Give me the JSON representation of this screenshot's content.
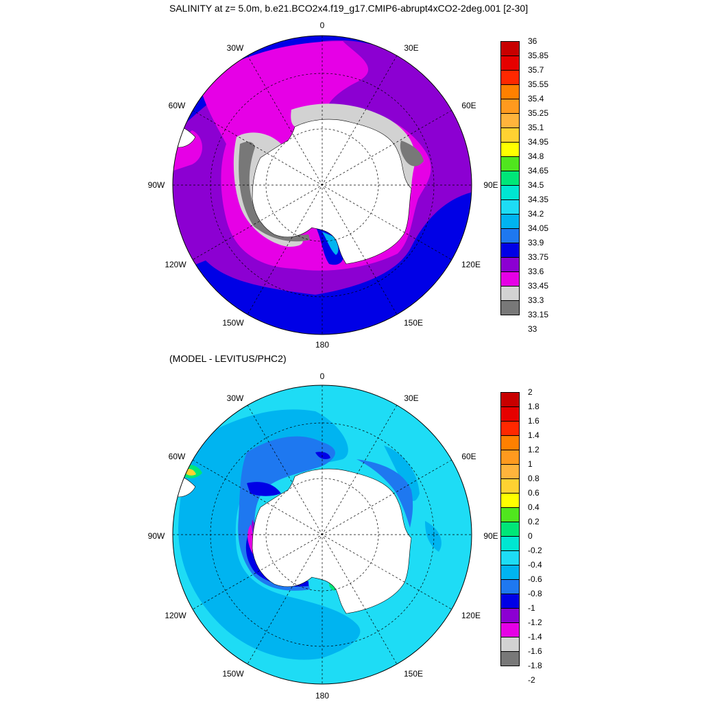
{
  "titles": {
    "main": "SALINITY at z=   5.0m, b.e21.BCO2x4.f19_g17.CMIP6-abrupt4xCO2-2deg.001 [2-30]",
    "difference": "(MODEL - LEVITUS/PHC2)"
  },
  "map_labels": {
    "top": "0",
    "lon_30w": "30W",
    "lon_30e": "30E",
    "lon_60w": "60W",
    "lon_60e": "60E",
    "lon_90w": "90W",
    "lon_90e": "90E",
    "lon_120w": "120W",
    "lon_120e": "120E",
    "lon_150w": "150W",
    "lon_150e": "150E",
    "bottom": "180"
  },
  "salinity_colorbar": {
    "labels": [
      "36",
      "35.85",
      "35.7",
      "35.55",
      "35.4",
      "35.25",
      "35.1",
      "34.95",
      "34.8",
      "34.65",
      "34.5",
      "34.35",
      "34.2",
      "34.05",
      "33.9",
      "33.75",
      "33.6",
      "33.45",
      "33.3",
      "33.15",
      "33"
    ],
    "colors": [
      "#c80000",
      "#e60000",
      "#ff2800",
      "#ff8000",
      "#ff9a1e",
      "#ffb43c",
      "#ffd232",
      "#ffff00",
      "#50e61e",
      "#00e678",
      "#00e6d2",
      "#1edcf5",
      "#00b4f0",
      "#1e78f0",
      "#0000e6",
      "#8c00d2",
      "#e600e6",
      "#d2d2d2",
      "#787878"
    ]
  },
  "difference_colorbar": {
    "labels": [
      "2",
      "1.8",
      "1.6",
      "1.4",
      "1.2",
      "1",
      "0.8",
      "0.6",
      "0.4",
      "0.2",
      "0",
      "-0.2",
      "-0.4",
      "-0.6",
      "-0.8",
      "-1",
      "-1.2",
      "-1.4",
      "-1.6",
      "-1.8",
      "-2"
    ],
    "colors": [
      "#c80000",
      "#e60000",
      "#ff2800",
      "#ff8000",
      "#ff9a1e",
      "#ffb43c",
      "#ffd232",
      "#ffff00",
      "#50e61e",
      "#00e678",
      "#00e6d2",
      "#1edcf5",
      "#00b4f0",
      "#1e78f0",
      "#0000e6",
      "#8c00d2",
      "#e600e6",
      "#d2d2d2",
      "#787878"
    ]
  }
}
